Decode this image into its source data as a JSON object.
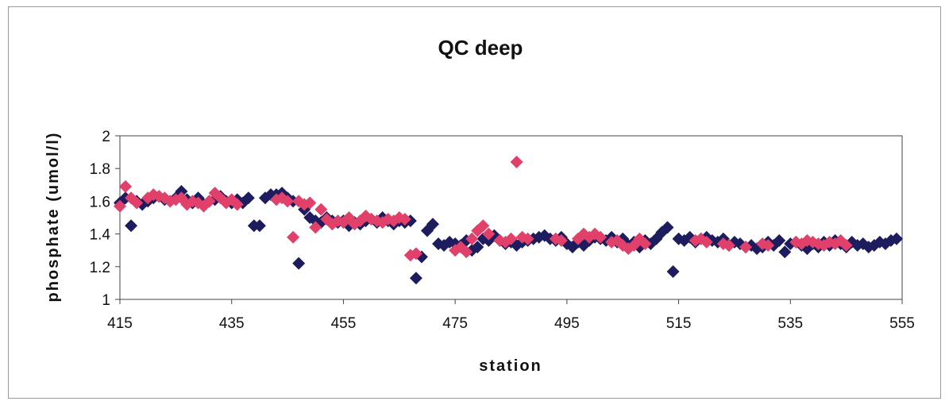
{
  "chart_data": {
    "type": "scatter",
    "title": "QC deep",
    "xlabel": "station",
    "ylabel": "phosphate  (umol/l)",
    "xlim": [
      415,
      555
    ],
    "ylim": [
      1,
      2
    ],
    "x_ticks": [
      "415",
      "435",
      "455",
      "475",
      "495",
      "515",
      "535",
      "555"
    ],
    "y_ticks": [
      "1",
      "1.2",
      "1.4",
      "1.6",
      "1.8",
      "2"
    ],
    "grid": false,
    "legend": "none",
    "marker": "diamond",
    "series": [
      {
        "color": "#1c1c5e",
        "points": [
          [
            415,
            1.59
          ],
          [
            416,
            1.62
          ],
          [
            417,
            1.45
          ],
          [
            418,
            1.6
          ],
          [
            419,
            1.58
          ],
          [
            420,
            1.6
          ],
          [
            421,
            1.62
          ],
          [
            422,
            1.63
          ],
          [
            423,
            1.61
          ],
          [
            424,
            1.6
          ],
          [
            425,
            1.62
          ],
          [
            426,
            1.66
          ],
          [
            427,
            1.61
          ],
          [
            428,
            1.59
          ],
          [
            429,
            1.62
          ],
          [
            430,
            1.58
          ],
          [
            431,
            1.6
          ],
          [
            432,
            1.61
          ],
          [
            433,
            1.63
          ],
          [
            434,
            1.6
          ],
          [
            435,
            1.59
          ],
          [
            436,
            1.61
          ],
          [
            437,
            1.59
          ],
          [
            438,
            1.62
          ],
          [
            439,
            1.45
          ],
          [
            440,
            1.45
          ],
          [
            441,
            1.62
          ],
          [
            442,
            1.64
          ],
          [
            443,
            1.64
          ],
          [
            444,
            1.65
          ],
          [
            445,
            1.62
          ],
          [
            446,
            1.6
          ],
          [
            447,
            1.22
          ],
          [
            448,
            1.55
          ],
          [
            449,
            1.5
          ],
          [
            450,
            1.48
          ],
          [
            451,
            1.47
          ],
          [
            452,
            1.5
          ],
          [
            453,
            1.48
          ],
          [
            454,
            1.47
          ],
          [
            455,
            1.48
          ],
          [
            456,
            1.45
          ],
          [
            457,
            1.47
          ],
          [
            458,
            1.46
          ],
          [
            459,
            1.48
          ],
          [
            460,
            1.49
          ],
          [
            461,
            1.47
          ],
          [
            462,
            1.5
          ],
          [
            463,
            1.48
          ],
          [
            464,
            1.46
          ],
          [
            465,
            1.48
          ],
          [
            466,
            1.47
          ],
          [
            467,
            1.48
          ],
          [
            468,
            1.13
          ],
          [
            469,
            1.26
          ],
          [
            470,
            1.42
          ],
          [
            471,
            1.46
          ],
          [
            472,
            1.34
          ],
          [
            473,
            1.33
          ],
          [
            474,
            1.35
          ],
          [
            475,
            1.34
          ],
          [
            476,
            1.33
          ],
          [
            477,
            1.36
          ],
          [
            478,
            1.3
          ],
          [
            479,
            1.32
          ],
          [
            480,
            1.37
          ],
          [
            481,
            1.36
          ],
          [
            482,
            1.39
          ],
          [
            483,
            1.36
          ],
          [
            484,
            1.34
          ],
          [
            485,
            1.35
          ],
          [
            486,
            1.33
          ],
          [
            487,
            1.35
          ],
          [
            488,
            1.36
          ],
          [
            489,
            1.37
          ],
          [
            490,
            1.38
          ],
          [
            491,
            1.39
          ],
          [
            492,
            1.37
          ],
          [
            493,
            1.36
          ],
          [
            494,
            1.38
          ],
          [
            495,
            1.34
          ],
          [
            496,
            1.32
          ],
          [
            497,
            1.35
          ],
          [
            498,
            1.33
          ],
          [
            499,
            1.36
          ],
          [
            500,
            1.38
          ],
          [
            501,
            1.37
          ],
          [
            502,
            1.36
          ],
          [
            503,
            1.38
          ],
          [
            504,
            1.35
          ],
          [
            505,
            1.37
          ],
          [
            506,
            1.33
          ],
          [
            507,
            1.35
          ],
          [
            508,
            1.32
          ],
          [
            509,
            1.36
          ],
          [
            510,
            1.34
          ],
          [
            511,
            1.37
          ],
          [
            512,
            1.41
          ],
          [
            513,
            1.44
          ],
          [
            514,
            1.17
          ],
          [
            515,
            1.37
          ],
          [
            516,
            1.36
          ],
          [
            517,
            1.38
          ],
          [
            518,
            1.35
          ],
          [
            519,
            1.37
          ],
          [
            520,
            1.38
          ],
          [
            521,
            1.36
          ],
          [
            522,
            1.35
          ],
          [
            523,
            1.37
          ],
          [
            524,
            1.33
          ],
          [
            525,
            1.35
          ],
          [
            526,
            1.34
          ],
          [
            527,
            1.32
          ],
          [
            528,
            1.33
          ],
          [
            529,
            1.31
          ],
          [
            530,
            1.32
          ],
          [
            531,
            1.35
          ],
          [
            532,
            1.33
          ],
          [
            533,
            1.36
          ],
          [
            534,
            1.29
          ],
          [
            535,
            1.34
          ],
          [
            536,
            1.35
          ],
          [
            537,
            1.33
          ],
          [
            538,
            1.31
          ],
          [
            539,
            1.34
          ],
          [
            540,
            1.32
          ],
          [
            541,
            1.35
          ],
          [
            542,
            1.33
          ],
          [
            543,
            1.36
          ],
          [
            544,
            1.34
          ],
          [
            545,
            1.32
          ],
          [
            546,
            1.35
          ],
          [
            547,
            1.33
          ],
          [
            548,
            1.34
          ],
          [
            549,
            1.32
          ],
          [
            550,
            1.33
          ],
          [
            551,
            1.35
          ],
          [
            552,
            1.34
          ],
          [
            553,
            1.36
          ],
          [
            554,
            1.37
          ]
        ]
      },
      {
        "color": "#e0406a",
        "points": [
          [
            415,
            1.57
          ],
          [
            416,
            1.69
          ],
          [
            417,
            1.62
          ],
          [
            418,
            1.59
          ],
          [
            420,
            1.62
          ],
          [
            421,
            1.64
          ],
          [
            422,
            1.63
          ],
          [
            423,
            1.62
          ],
          [
            424,
            1.6
          ],
          [
            425,
            1.61
          ],
          [
            426,
            1.62
          ],
          [
            427,
            1.58
          ],
          [
            428,
            1.6
          ],
          [
            429,
            1.59
          ],
          [
            430,
            1.57
          ],
          [
            431,
            1.6
          ],
          [
            432,
            1.65
          ],
          [
            433,
            1.62
          ],
          [
            434,
            1.59
          ],
          [
            435,
            1.61
          ],
          [
            436,
            1.58
          ],
          [
            443,
            1.61
          ],
          [
            444,
            1.62
          ],
          [
            445,
            1.6
          ],
          [
            446,
            1.38
          ],
          [
            447,
            1.6
          ],
          [
            448,
            1.58
          ],
          [
            449,
            1.59
          ],
          [
            450,
            1.44
          ],
          [
            451,
            1.55
          ],
          [
            452,
            1.49
          ],
          [
            453,
            1.46
          ],
          [
            454,
            1.48
          ],
          [
            455,
            1.47
          ],
          [
            456,
            1.5
          ],
          [
            457,
            1.46
          ],
          [
            458,
            1.48
          ],
          [
            459,
            1.51
          ],
          [
            460,
            1.49
          ],
          [
            461,
            1.48
          ],
          [
            462,
            1.47
          ],
          [
            463,
            1.49
          ],
          [
            464,
            1.48
          ],
          [
            465,
            1.5
          ],
          [
            466,
            1.49
          ],
          [
            467,
            1.27
          ],
          [
            468,
            1.28
          ],
          [
            475,
            1.3
          ],
          [
            476,
            1.32
          ],
          [
            477,
            1.29
          ],
          [
            478,
            1.37
          ],
          [
            479,
            1.42
          ],
          [
            480,
            1.45
          ],
          [
            481,
            1.4
          ],
          [
            483,
            1.36
          ],
          [
            484,
            1.35
          ],
          [
            485,
            1.37
          ],
          [
            486,
            1.84
          ],
          [
            487,
            1.38
          ],
          [
            488,
            1.37
          ],
          [
            493,
            1.37
          ],
          [
            494,
            1.36
          ],
          [
            497,
            1.37
          ],
          [
            498,
            1.4
          ],
          [
            499,
            1.38
          ],
          [
            500,
            1.4
          ],
          [
            501,
            1.38
          ],
          [
            503,
            1.35
          ],
          [
            504,
            1.36
          ],
          [
            505,
            1.33
          ],
          [
            506,
            1.31
          ],
          [
            507,
            1.33
          ],
          [
            508,
            1.37
          ],
          [
            509,
            1.34
          ],
          [
            518,
            1.36
          ],
          [
            519,
            1.37
          ],
          [
            520,
            1.35
          ],
          [
            523,
            1.34
          ],
          [
            524,
            1.33
          ],
          [
            527,
            1.32
          ],
          [
            530,
            1.34
          ],
          [
            531,
            1.33
          ],
          [
            536,
            1.35
          ],
          [
            537,
            1.34
          ],
          [
            538,
            1.36
          ],
          [
            539,
            1.35
          ],
          [
            540,
            1.34
          ],
          [
            541,
            1.33
          ],
          [
            542,
            1.35
          ],
          [
            543,
            1.34
          ],
          [
            544,
            1.36
          ],
          [
            545,
            1.33
          ]
        ]
      }
    ]
  }
}
